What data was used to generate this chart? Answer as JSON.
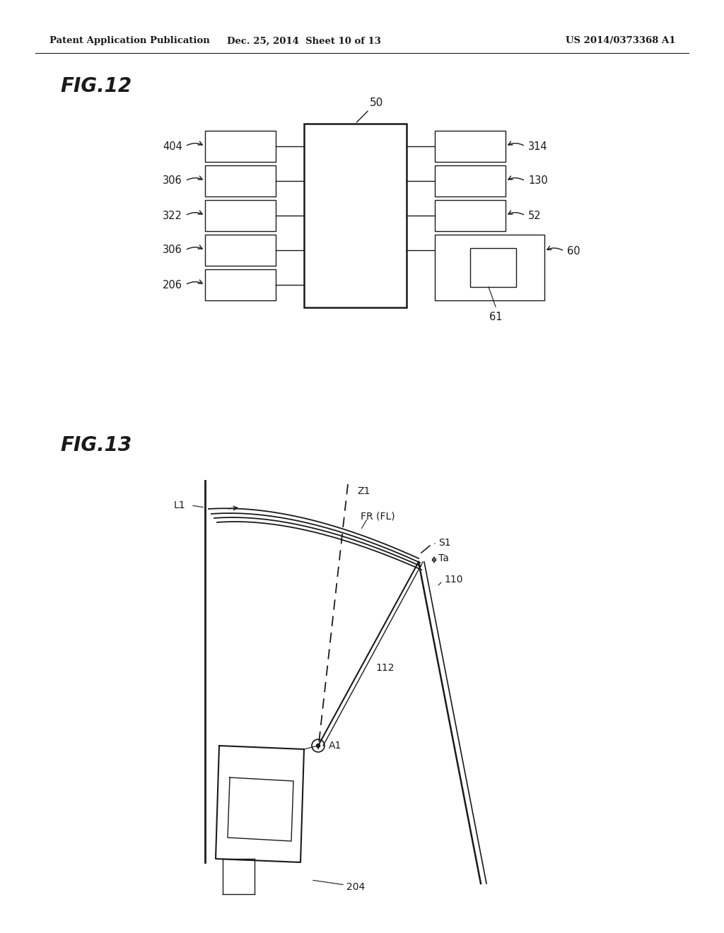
{
  "header_left": "Patent Application Publication",
  "header_mid": "Dec. 25, 2014  Sheet 10 of 13",
  "header_right": "US 2014/0373368 A1",
  "fig12_label": "FIG.12",
  "fig13_label": "FIG.13",
  "bg_color": "#ffffff",
  "line_color": "#1a1a1a"
}
